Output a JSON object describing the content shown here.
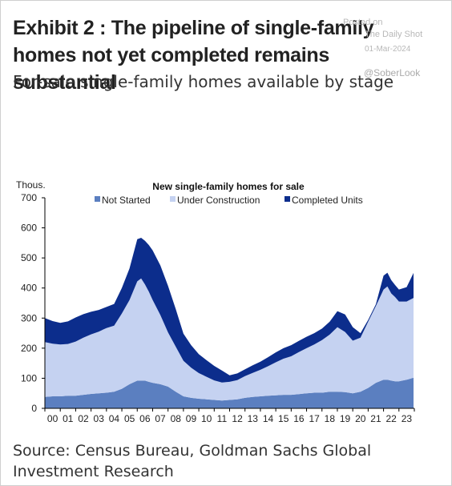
{
  "header": {
    "title": "Exhibit 2 : The pipeline of single-family homes not yet completed remains substantial",
    "subtitle": "For-sale single-family homes available by stage"
  },
  "watermark": {
    "posted_on": "Posted on",
    "publisher": "The Daily Shot",
    "date": "01-Mar-2024",
    "handle": "@SoberLook"
  },
  "source": "Source: Census Bureau, Goldman Sachs Global Investment Research",
  "chart_data": {
    "type": "area",
    "stacked": true,
    "title": "New single-family homes for sale",
    "ylabel": "Thous.",
    "xlabel": "",
    "ylim": [
      0,
      700
    ],
    "xlim": [
      2000,
      2024
    ],
    "yticks": [
      0,
      100,
      200,
      300,
      400,
      500,
      600,
      700
    ],
    "xtick_labels": [
      "00",
      "01",
      "02",
      "03",
      "04",
      "05",
      "06",
      "07",
      "08",
      "09",
      "10",
      "11",
      "12",
      "13",
      "14",
      "15",
      "16",
      "17",
      "18",
      "19",
      "20",
      "21",
      "22",
      "23"
    ],
    "grid": false,
    "legend": "top",
    "x": [
      2000,
      2000.5,
      2001,
      2001.5,
      2002,
      2002.5,
      2003,
      2003.5,
      2004,
      2004.5,
      2005,
      2005.5,
      2006,
      2006.25,
      2006.5,
      2006.75,
      2007,
      2007.5,
      2008,
      2008.5,
      2009,
      2009.5,
      2010,
      2010.5,
      2011,
      2011.5,
      2012,
      2012.5,
      2013,
      2013.5,
      2014,
      2014.5,
      2015,
      2015.5,
      2016,
      2016.5,
      2017,
      2017.5,
      2018,
      2018.5,
      2019,
      2019.5,
      2020,
      2020.5,
      2021,
      2021.5,
      2022,
      2022.25,
      2022.5,
      2022.75,
      2023,
      2023.5,
      2023.95
    ],
    "series": [
      {
        "name": "Not Started",
        "color": "#5b7fc0",
        "values": [
          38,
          40,
          40,
          42,
          42,
          45,
          48,
          50,
          52,
          55,
          65,
          80,
          92,
          92,
          92,
          88,
          85,
          80,
          72,
          55,
          40,
          35,
          32,
          30,
          28,
          26,
          28,
          30,
          35,
          38,
          40,
          42,
          43,
          45,
          45,
          47,
          50,
          52,
          52,
          55,
          55,
          54,
          50,
          55,
          68,
          85,
          95,
          95,
          92,
          90,
          90,
          95,
          102
        ]
      },
      {
        "name": "Under Construction",
        "color": "#c5d2f1",
        "values": [
          182,
          175,
          172,
          172,
          180,
          190,
          198,
          205,
          215,
          220,
          250,
          280,
          330,
          340,
          320,
          300,
          275,
          230,
          180,
          150,
          118,
          100,
          85,
          75,
          65,
          60,
          60,
          64,
          72,
          80,
          88,
          98,
          110,
          120,
          128,
          140,
          150,
          160,
          175,
          190,
          215,
          200,
          175,
          180,
          220,
          255,
          300,
          310,
          290,
          280,
          265,
          260,
          265
        ]
      },
      {
        "name": "Completed Units",
        "color": "#0c2d8c",
        "values": [
          80,
          75,
          72,
          75,
          80,
          78,
          75,
          72,
          70,
          72,
          85,
          105,
          140,
          135,
          145,
          155,
          165,
          165,
          155,
          125,
          90,
          75,
          63,
          55,
          48,
          40,
          22,
          22,
          23,
          25,
          27,
          30,
          33,
          35,
          37,
          37,
          38,
          38,
          38,
          43,
          53,
          58,
          45,
          15,
          6,
          6,
          46,
          46,
          44,
          40,
          40,
          48,
          83
        ]
      }
    ]
  }
}
